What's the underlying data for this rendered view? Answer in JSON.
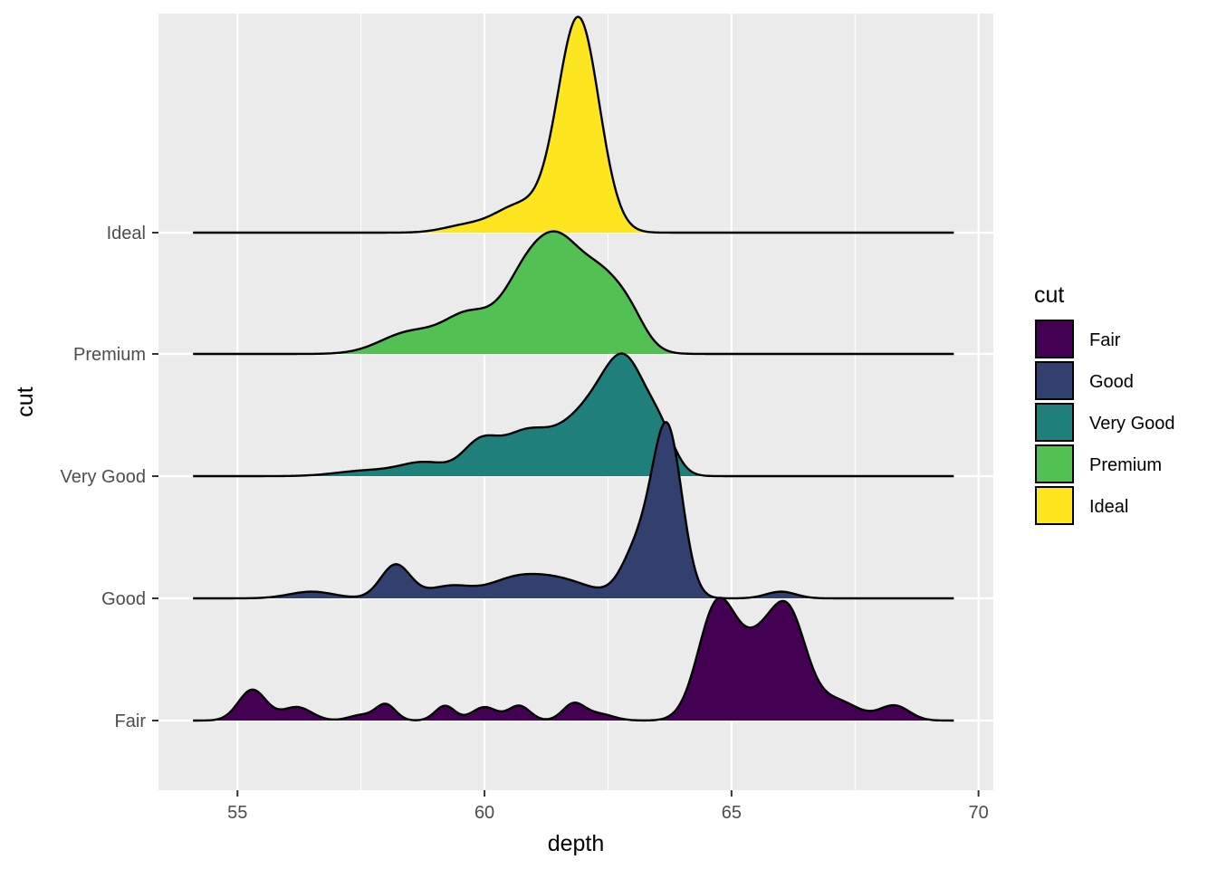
{
  "chart_data": {
    "type": "ridgeline",
    "xlabel": "depth",
    "ylabel": "cut",
    "xlim": [
      53.4,
      70.3
    ],
    "x_ticks": [
      55,
      60,
      65,
      70
    ],
    "x_tick_labels": [
      "55",
      "60",
      "65",
      "70"
    ],
    "x_range": [
      54.1,
      69.5
    ],
    "grid": true,
    "legend": {
      "title": "cut",
      "placement": "right",
      "entries": [
        "Fair",
        "Good",
        "Very Good",
        "Premium",
        "Ideal"
      ]
    },
    "categories": [
      "Fair",
      "Good",
      "Very Good",
      "Premium",
      "Ideal"
    ],
    "colors": {
      "Fair": "#440154",
      "Good": "#31406E",
      "Very Good": "#1F7F7A",
      "Premium": "#52C053",
      "Ideal": "#FDE51F"
    },
    "series": [
      {
        "name": "Fair",
        "peaks": [
          {
            "mu": 55.3,
            "sigma": 0.28,
            "h": 0.23
          },
          {
            "mu": 56.2,
            "sigma": 0.3,
            "h": 0.1
          },
          {
            "mu": 57.5,
            "sigma": 0.25,
            "h": 0.04
          },
          {
            "mu": 58.0,
            "sigma": 0.2,
            "h": 0.12
          },
          {
            "mu": 59.2,
            "sigma": 0.2,
            "h": 0.11
          },
          {
            "mu": 60.0,
            "sigma": 0.25,
            "h": 0.1
          },
          {
            "mu": 60.7,
            "sigma": 0.22,
            "h": 0.11
          },
          {
            "mu": 61.8,
            "sigma": 0.22,
            "h": 0.12
          },
          {
            "mu": 62.3,
            "sigma": 0.3,
            "h": 0.05
          },
          {
            "mu": 64.7,
            "sigma": 0.38,
            "h": 0.83
          },
          {
            "mu": 65.6,
            "sigma": 0.45,
            "h": 0.55
          },
          {
            "mu": 66.2,
            "sigma": 0.35,
            "h": 0.6
          },
          {
            "mu": 67.1,
            "sigma": 0.45,
            "h": 0.15
          },
          {
            "mu": 68.3,
            "sigma": 0.3,
            "h": 0.11
          }
        ]
      },
      {
        "name": "Good",
        "peaks": [
          {
            "mu": 56.5,
            "sigma": 0.45,
            "h": 0.05
          },
          {
            "mu": 58.2,
            "sigma": 0.3,
            "h": 0.25
          },
          {
            "mu": 59.3,
            "sigma": 0.45,
            "h": 0.09
          },
          {
            "mu": 60.5,
            "sigma": 0.5,
            "h": 0.09
          },
          {
            "mu": 61.4,
            "sigma": 0.7,
            "h": 0.15
          },
          {
            "mu": 63.1,
            "sigma": 0.32,
            "h": 0.35
          },
          {
            "mu": 63.7,
            "sigma": 0.3,
            "h": 1.25
          },
          {
            "mu": 66.0,
            "sigma": 0.3,
            "h": 0.05
          }
        ]
      },
      {
        "name": "Very Good",
        "peaks": [
          {
            "mu": 57.6,
            "sigma": 0.6,
            "h": 0.04
          },
          {
            "mu": 58.8,
            "sigma": 0.5,
            "h": 0.1
          },
          {
            "mu": 59.9,
            "sigma": 0.35,
            "h": 0.22
          },
          {
            "mu": 60.8,
            "sigma": 0.5,
            "h": 0.3
          },
          {
            "mu": 62.1,
            "sigma": 0.6,
            "h": 0.45
          },
          {
            "mu": 62.9,
            "sigma": 0.45,
            "h": 0.7
          },
          {
            "mu": 63.6,
            "sigma": 0.28,
            "h": 0.2
          }
        ]
      },
      {
        "name": "Premium",
        "peaks": [
          {
            "mu": 58.5,
            "sigma": 0.6,
            "h": 0.16
          },
          {
            "mu": 59.7,
            "sigma": 0.5,
            "h": 0.28
          },
          {
            "mu": 60.8,
            "sigma": 0.45,
            "h": 0.5
          },
          {
            "mu": 61.5,
            "sigma": 0.45,
            "h": 0.65
          },
          {
            "mu": 62.4,
            "sigma": 0.5,
            "h": 0.55
          },
          {
            "mu": 63.0,
            "sigma": 0.3,
            "h": 0.1
          }
        ]
      },
      {
        "name": "Ideal",
        "peaks": [
          {
            "mu": 59.6,
            "sigma": 0.45,
            "h": 0.05
          },
          {
            "mu": 60.7,
            "sigma": 0.5,
            "h": 0.2
          },
          {
            "mu": 61.9,
            "sigma": 0.42,
            "h": 1.6
          }
        ]
      }
    ]
  }
}
